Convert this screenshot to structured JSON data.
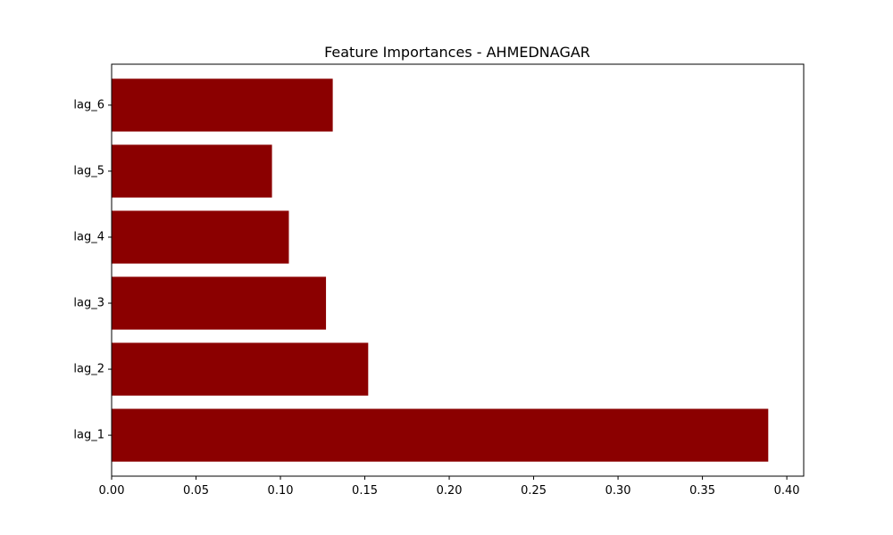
{
  "chart_data": {
    "type": "bar",
    "orientation": "horizontal",
    "title": "Feature Importances - AHMEDNAGAR",
    "xlabel": "",
    "ylabel": "",
    "categories": [
      "lag_1",
      "lag_2",
      "lag_3",
      "lag_4",
      "lag_5",
      "lag_6"
    ],
    "values": [
      0.389,
      0.152,
      0.127,
      0.105,
      0.095,
      0.131
    ],
    "xlim": [
      0.0,
      0.41
    ],
    "xticks": [
      "0.00",
      "0.05",
      "0.10",
      "0.15",
      "0.20",
      "0.25",
      "0.30",
      "0.35",
      "0.40"
    ],
    "bar_color": "#8b0000",
    "grid": false,
    "legend": "none"
  }
}
